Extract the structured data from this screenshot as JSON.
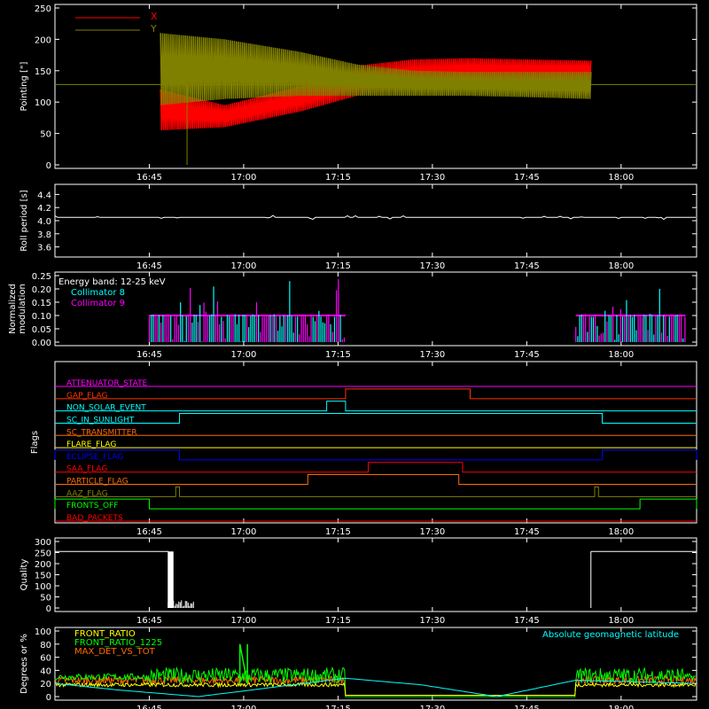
{
  "time_ticks": [
    "16:45",
    "17:00",
    "17:15",
    "17:30",
    "17:45",
    "18:00"
  ],
  "chart_data": [
    {
      "type": "line",
      "ylabel": "Pointing [\"]",
      "ylim": [
        0,
        250
      ],
      "yticks": [
        "0",
        "50",
        "100",
        "150",
        "200",
        "250"
      ],
      "legend": "top-left",
      "series": [
        {
          "name": "X",
          "color": "#ff0000",
          "t_min": [
            16.78,
            16.95,
            17.15,
            17.3,
            17.45,
            17.6,
            17.75,
            17.92
          ],
          "upper": [
            120,
            95,
            125,
            158,
            168,
            170,
            168,
            166
          ],
          "lower": [
            55,
            60,
            85,
            110,
            125,
            132,
            134,
            138
          ]
        },
        {
          "name": "Y",
          "color": "#808000",
          "t_min": [
            16.78,
            16.95,
            17.15,
            17.3,
            17.45,
            17.6,
            17.75,
            17.92
          ],
          "upper": [
            210,
            200,
            180,
            160,
            150,
            148,
            148,
            148
          ],
          "lower": [
            95,
            105,
            110,
            110,
            110,
            110,
            108,
            105
          ]
        }
      ],
      "reference_line": 128
    },
    {
      "type": "line",
      "ylabel": "Roll period [s]",
      "ylim": [
        3.5,
        4.5
      ],
      "yticks": [
        "3.6",
        "3.8",
        "4.0",
        "4.2",
        "4.4"
      ],
      "series": [
        {
          "color": "#ffffff",
          "value": 4.05
        }
      ]
    },
    {
      "type": "bar",
      "ylabel": "Normalized modulation",
      "ylim": [
        0,
        0.25
      ],
      "yticks": [
        "0.00",
        "0.05",
        "0.10",
        "0.15",
        "0.20",
        "0.25"
      ],
      "annotation": "Energy band: 12-25 keV",
      "series": [
        {
          "name": "Collimator 8",
          "color": "#00ffff"
        },
        {
          "name": "Collimator 9",
          "color": "#ff00ff"
        }
      ],
      "active_intervals": [
        [
          16.75,
          17.27
        ],
        [
          17.88,
          18.17
        ]
      ],
      "typical_value": 0.1
    },
    {
      "type": "line",
      "ylabel": "Flags",
      "flags": [
        {
          "name": "ATTENUATOR_STATE",
          "color": "#ff00ff",
          "steps": []
        },
        {
          "name": "GAP_FLAG",
          "color": "#ff3300",
          "steps": [
            [
              17.27,
              17.6
            ]
          ]
        },
        {
          "name": "NON_SOLAR_EVENT",
          "color": "#00ffff",
          "steps": [
            [
              17.22,
              17.27
            ]
          ]
        },
        {
          "name": "SC_IN_SUNLIGHT",
          "color": "#00ffff",
          "steps": [
            [
              16.83,
              17.95
            ]
          ]
        },
        {
          "name": "SC_TRANSMITTER",
          "color": "#ff6a00",
          "steps": []
        },
        {
          "name": "FLARE_FLAG",
          "color": "#ffff00",
          "steps": []
        },
        {
          "name": "ECLIPSE_FLAG",
          "color": "#0000ff",
          "steps": [
            [
              0,
              16.83
            ],
            [
              17.95,
              99
            ]
          ]
        },
        {
          "name": "SAA_FLAG",
          "color": "#ff0000",
          "steps": [
            [
              17.33,
              17.58
            ]
          ]
        },
        {
          "name": "PARTICLE_FLAG",
          "color": "#ff6a00",
          "steps": [
            [
              17.17,
              17.57
            ]
          ]
        },
        {
          "name": "AAZ_FLAG",
          "color": "#808000",
          "steps": [
            [
              16.82,
              16.83
            ],
            [
              17.93,
              17.94
            ]
          ]
        },
        {
          "name": "FRONTS_OFF",
          "color": "#00ff00",
          "steps": [
            [
              0,
              16.75
            ],
            [
              18.05,
              99
            ]
          ]
        },
        {
          "name": "BAD_PACKETS",
          "color": "#ff0000",
          "steps": []
        }
      ]
    },
    {
      "type": "bar",
      "ylabel": "Quality",
      "ylim": [
        0,
        300
      ],
      "yticks": [
        "0",
        "50",
        "100",
        "150",
        "200",
        "250",
        "300"
      ],
      "series": [
        {
          "color": "#ffffff",
          "segments": [
            [
              16.5,
              16.8,
              255
            ],
            [
              16.8,
              16.87,
              30
            ],
            [
              17.92,
              18.2,
              255
            ]
          ]
        }
      ]
    },
    {
      "type": "line",
      "ylabel": "Degrees or %",
      "ylim": [
        0,
        100
      ],
      "yticks": [
        "0",
        "20",
        "40",
        "60",
        "80",
        "100"
      ],
      "annotation": "Absolute geomagnetic latitude",
      "series": [
        {
          "name": "FRONT_RATIO",
          "color": "#ffff00",
          "level": 18
        },
        {
          "name": "FRONT_RATIO_1225",
          "color": "#00ff00",
          "level": 40
        },
        {
          "name": "MAX_DET_VS_TOT",
          "color": "#ff6a00",
          "level": 25
        },
        {
          "name": "",
          "color": "#00ffff",
          "t_min": [
            16.5,
            16.67,
            16.88,
            17.27,
            17.47,
            17.67,
            17.88,
            18.2
          ],
          "values": [
            20,
            10,
            0,
            28,
            18,
            0,
            25,
            20
          ]
        }
      ]
    }
  ]
}
